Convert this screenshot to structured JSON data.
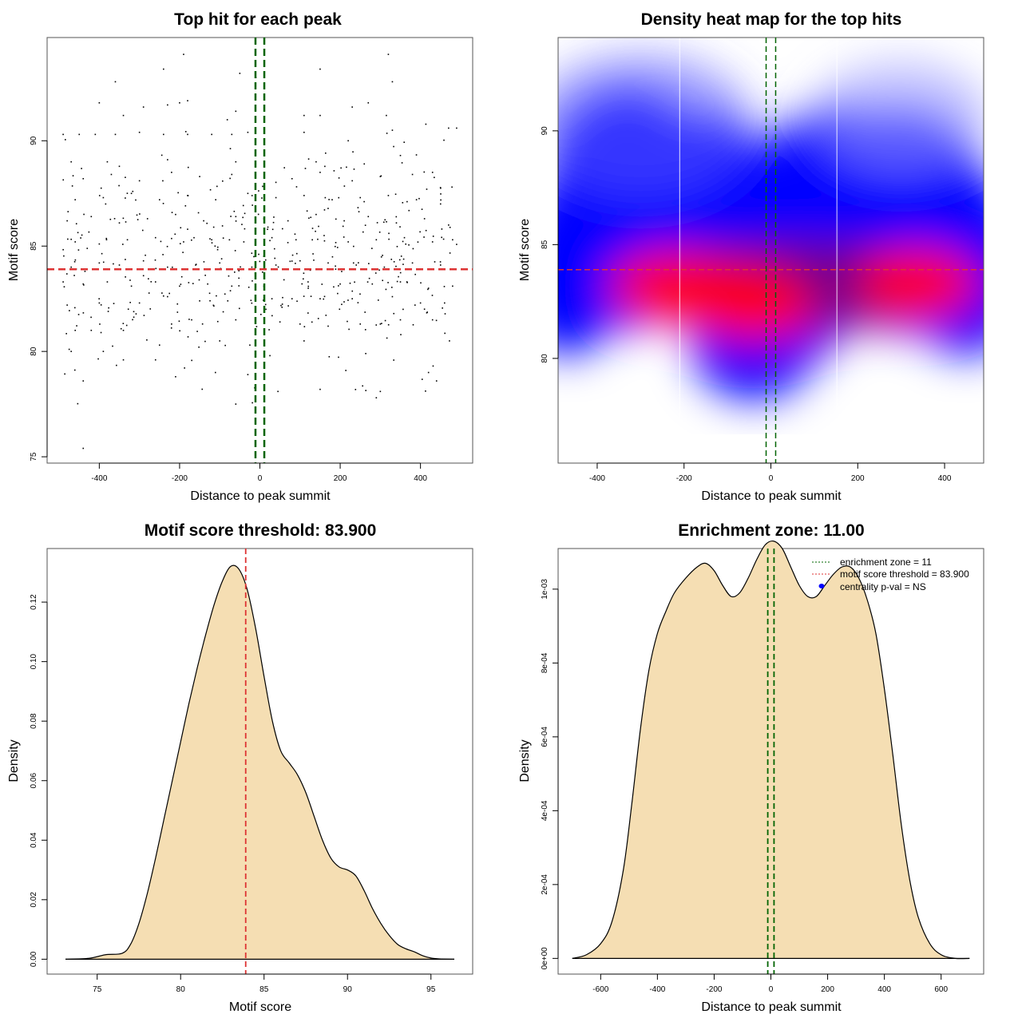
{
  "chart_data": [
    {
      "id": "scatter",
      "type": "scatter",
      "title": "Top hit for each peak",
      "xlabel": "Distance to peak summit",
      "ylabel": "Motif score",
      "xlim": [
        -530,
        530
      ],
      "ylim": [
        74.7,
        94.9
      ],
      "xticks": [
        -400,
        -200,
        0,
        200,
        400
      ],
      "xtick_labels": [
        "-400",
        "-200",
        "0",
        "200",
        "400"
      ],
      "yticks": [
        75,
        80,
        85,
        90
      ],
      "ytick_labels": [
        "75",
        "80",
        "85",
        "90"
      ],
      "grid": false,
      "hlines": [
        {
          "y": 83.9,
          "color": "#dd3333",
          "style": "dashed"
        }
      ],
      "vlines": [
        {
          "x": -11,
          "color": "#006400",
          "style": "dashed"
        },
        {
          "x": 11,
          "color": "#006400",
          "style": "dashed"
        }
      ],
      "points_summary": "~600 points spread uniformly across x in [-490, 490], y concentrated 78–92 with mean ~84",
      "points": [
        [
          -440,
          75.4
        ],
        [
          -60,
          77.5
        ],
        [
          290,
          77.8
        ],
        [
          -440,
          78.6
        ],
        [
          150,
          78.2
        ],
        [
          -340,
          79.6
        ],
        [
          -260,
          79.6
        ],
        [
          -470,
          80.0
        ],
        [
          -475,
          80.1
        ],
        [
          -210,
          78.8
        ],
        [
          -30,
          78.9
        ],
        [
          45,
          78.1
        ],
        [
          300,
          78.1
        ],
        [
          420,
          79.0
        ],
        [
          440,
          78.6
        ],
        [
          -390,
          80.0
        ],
        [
          -250,
          80.3
        ],
        [
          -100,
          80.5
        ],
        [
          110,
          80.5
        ],
        [
          -460,
          81.0
        ],
        [
          -420,
          81.0
        ],
        [
          -340,
          81.0
        ],
        [
          -220,
          81.3
        ],
        [
          -170,
          81.5
        ],
        [
          -60,
          81.5
        ],
        [
          50,
          81.4
        ],
        [
          100,
          81.3
        ],
        [
          170,
          81.2
        ],
        [
          250,
          81.3
        ],
        [
          300,
          81.3
        ],
        [
          350,
          81.5
        ],
        [
          430,
          81.5
        ],
        [
          -480,
          82.2
        ],
        [
          -400,
          82.3
        ],
        [
          -300,
          82.3
        ],
        [
          -230,
          82.6
        ],
        [
          -150,
          82.4
        ],
        [
          -80,
          82.4
        ],
        [
          30,
          82.5
        ],
        [
          80,
          82.5
        ],
        [
          150,
          82.5
        ],
        [
          230,
          82.5
        ],
        [
          330,
          82.6
        ],
        [
          400,
          82.3
        ],
        [
          460,
          82.3
        ],
        [
          -490,
          83.3
        ],
        [
          -440,
          83.2
        ],
        [
          -380,
          83.3
        ],
        [
          -320,
          83.1
        ],
        [
          -260,
          83.3
        ],
        [
          -200,
          83.1
        ],
        [
          -130,
          83.2
        ],
        [
          -70,
          83.1
        ],
        [
          10,
          83.1
        ],
        [
          60,
          83.4
        ],
        [
          120,
          83.3
        ],
        [
          200,
          83.2
        ],
        [
          280,
          83.2
        ],
        [
          350,
          83.3
        ],
        [
          420,
          83.0
        ],
        [
          480,
          83.1
        ],
        [
          -470,
          84.0
        ],
        [
          -400,
          84.2
        ],
        [
          -350,
          84.1
        ],
        [
          -290,
          84.3
        ],
        [
          -230,
          84.0
        ],
        [
          -160,
          84.1
        ],
        [
          -100,
          84.2
        ],
        [
          -20,
          84.0
        ],
        [
          40,
          84.1
        ],
        [
          100,
          84.3
        ],
        [
          170,
          84.2
        ],
        [
          240,
          84.1
        ],
        [
          310,
          84.0
        ],
        [
          380,
          84.2
        ],
        [
          450,
          84.1
        ],
        [
          -460,
          85.2
        ],
        [
          -400,
          85.1
        ],
        [
          -330,
          85.3
        ],
        [
          -260,
          85.4
        ],
        [
          -190,
          85.2
        ],
        [
          -120,
          85.3
        ],
        [
          -40,
          85.2
        ],
        [
          30,
          85.4
        ],
        [
          90,
          85.3
        ],
        [
          160,
          85.5
        ],
        [
          220,
          85.2
        ],
        [
          290,
          85.3
        ],
        [
          360,
          85.4
        ],
        [
          430,
          85.2
        ],
        [
          480,
          85.3
        ],
        [
          -480,
          86.2
        ],
        [
          -420,
          86.4
        ],
        [
          -350,
          86.1
        ],
        [
          -280,
          86.3
        ],
        [
          -210,
          86.5
        ],
        [
          -140,
          86.2
        ],
        [
          -60,
          86.4
        ],
        [
          10,
          86.3
        ],
        [
          70,
          86.2
        ],
        [
          140,
          86.5
        ],
        [
          210,
          86.2
        ],
        [
          270,
          86.4
        ],
        [
          340,
          86.1
        ],
        [
          410,
          86.3
        ],
        [
          470,
          86.0
        ],
        [
          -460,
          87.2
        ],
        [
          -390,
          87.3
        ],
        [
          -320,
          87.5
        ],
        [
          -250,
          87.2
        ],
        [
          -180,
          87.4
        ],
        [
          -110,
          87.2
        ],
        [
          -30,
          87.5
        ],
        [
          40,
          87.3
        ],
        [
          110,
          87.4
        ],
        [
          180,
          87.2
        ],
        [
          250,
          87.3
        ],
        [
          320,
          87.4
        ],
        [
          390,
          87.2
        ],
        [
          450,
          87.0
        ],
        [
          -440,
          88.2
        ],
        [
          -370,
          88.4
        ],
        [
          -300,
          88.1
        ],
        [
          -220,
          88.5
        ],
        [
          -150,
          88.3
        ],
        [
          -70,
          88.4
        ],
        [
          80,
          88.2
        ],
        [
          150,
          88.5
        ],
        [
          230,
          88.1
        ],
        [
          300,
          88.3
        ],
        [
          380,
          88.4
        ],
        [
          430,
          88.5
        ],
        [
          -470,
          89.0
        ],
        [
          -380,
          89.0
        ],
        [
          -230,
          89.1
        ],
        [
          -60,
          89.0
        ],
        [
          140,
          89.0
        ],
        [
          260,
          88.9
        ],
        [
          350,
          89.3
        ],
        [
          -490,
          90.3
        ],
        [
          -450,
          90.3
        ],
        [
          -410,
          90.3
        ],
        [
          -360,
          90.3
        ],
        [
          -300,
          90.4
        ],
        [
          -240,
          90.3
        ],
        [
          -180,
          90.3
        ],
        [
          -120,
          90.3
        ],
        [
          -70,
          90.3
        ],
        [
          -30,
          90.4
        ],
        [
          110,
          90.4
        ],
        [
          220,
          90.0
        ],
        [
          330,
          90.5
        ],
        [
          470,
          90.6
        ],
        [
          490,
          90.6
        ],
        [
          -400,
          91.8
        ],
        [
          -340,
          91.2
        ],
        [
          -290,
          91.6
        ],
        [
          -230,
          91.7
        ],
        [
          -200,
          91.8
        ],
        [
          -180,
          91.9
        ],
        [
          -60,
          91.4
        ],
        [
          110,
          91.2
        ],
        [
          150,
          91.2
        ],
        [
          230,
          91.6
        ],
        [
          270,
          91.8
        ],
        [
          315,
          91.2
        ],
        [
          -360,
          92.8
        ],
        [
          -240,
          93.4
        ],
        [
          -50,
          93.2
        ],
        [
          150,
          93.4
        ],
        [
          330,
          92.8
        ],
        [
          -190,
          94.1
        ],
        [
          320,
          94.1
        ],
        [
          -10,
          93.0
        ],
        [
          20,
          85.9
        ],
        [
          -15,
          84.5
        ],
        [
          15,
          82.0
        ],
        [
          -25,
          80.3
        ],
        [
          25,
          79.8
        ]
      ]
    },
    {
      "id": "heatmap",
      "type": "heatmap",
      "title": "Density heat map for the top hits",
      "xlabel": "Distance to peak summit",
      "ylabel": "Motif score",
      "xlim": [
        -490,
        490
      ],
      "ylim": [
        75.4,
        94.1
      ],
      "xticks": [
        -400,
        -200,
        0,
        200,
        400
      ],
      "xtick_labels": [
        "-400",
        "-200",
        "0",
        "200",
        "400"
      ],
      "yticks": [
        80,
        85,
        90
      ],
      "ytick_labels": [
        "80",
        "85",
        "90"
      ],
      "colorscale": [
        "#ffffff",
        "#0000ff",
        "#ff0000"
      ],
      "hlines": [
        {
          "y": 83.9,
          "color": "#dd3333",
          "style": "dashed"
        }
      ],
      "vlines": [
        {
          "x": -11,
          "color": "#006400",
          "style": "dashed"
        },
        {
          "x": 11,
          "color": "#006400",
          "style": "dashed"
        }
      ],
      "white_vlines": [
        -210,
        152
      ],
      "density_peaks": [
        {
          "x": -230,
          "y": 83.2,
          "intensity": 1.0
        },
        {
          "x": -40,
          "y": 82.3,
          "intensity": 1.0
        },
        {
          "x": 340,
          "y": 83.3,
          "intensity": 1.0
        }
      ]
    },
    {
      "id": "score-density",
      "type": "area",
      "title": "Motif score threshold: 83.900",
      "xlabel": "Motif score",
      "ylabel": "Density",
      "xlim": [
        72.0,
        97.5
      ],
      "ylim": [
        -0.005,
        0.138
      ],
      "xticks": [
        75,
        80,
        85,
        90,
        95
      ],
      "xtick_labels": [
        "75",
        "80",
        "85",
        "90",
        "95"
      ],
      "yticks": [
        0.0,
        0.02,
        0.04,
        0.06,
        0.08,
        0.1,
        0.12
      ],
      "ytick_labels": [
        "0.00",
        "0.02",
        "0.04",
        "0.06",
        "0.08",
        "0.10",
        "0.12"
      ],
      "fill": "#f5deb3",
      "vlines": [
        {
          "x": 83.9,
          "color": "#dd3333",
          "style": "dashed"
        }
      ],
      "x": [
        73.1,
        74.5,
        75.5,
        76.5,
        77.0,
        77.5,
        78.0,
        78.5,
        79.0,
        79.5,
        80.0,
        80.5,
        81.0,
        81.5,
        82.0,
        82.5,
        83.0,
        83.5,
        84.0,
        84.5,
        85.0,
        85.5,
        86.0,
        86.5,
        87.0,
        87.5,
        88.0,
        88.5,
        89.0,
        89.5,
        90.0,
        90.5,
        91.0,
        91.5,
        92.0,
        92.5,
        93.0,
        93.5,
        94.0,
        94.5,
        95.0,
        95.5,
        96.4
      ],
      "values": [
        0.0,
        0.0003,
        0.0015,
        0.002,
        0.005,
        0.012,
        0.022,
        0.034,
        0.047,
        0.06,
        0.073,
        0.086,
        0.098,
        0.109,
        0.119,
        0.127,
        0.132,
        0.131,
        0.124,
        0.111,
        0.095,
        0.08,
        0.07,
        0.066,
        0.062,
        0.056,
        0.048,
        0.04,
        0.034,
        0.031,
        0.03,
        0.028,
        0.023,
        0.017,
        0.012,
        0.008,
        0.005,
        0.0035,
        0.0025,
        0.0012,
        0.0004,
        0.0001,
        0.0
      ]
    },
    {
      "id": "distance-density",
      "type": "area",
      "title": "Enrichment zone: 11.00",
      "xlabel": "Distance to peak summit",
      "ylabel": "Density",
      "xlim": [
        -750,
        750
      ],
      "ylim": [
        -4.25e-05,
        0.00111
      ],
      "xticks": [
        -600,
        -400,
        -200,
        0,
        200,
        400,
        600
      ],
      "xtick_labels": [
        "-600",
        "-400",
        "-200",
        "0",
        "200",
        "400",
        "600"
      ],
      "yticks": [
        0.0,
        0.0002,
        0.0004,
        0.0006,
        0.0008,
        0.001
      ],
      "ytick_labels": [
        "0e+00",
        "2e-04",
        "4e-04",
        "6e-04",
        "8e-04",
        "1e-03"
      ],
      "fill": "#f5deb3",
      "vlines": [
        {
          "x": -11,
          "color": "#006400",
          "style": "dashed"
        },
        {
          "x": 11,
          "color": "#006400",
          "style": "dashed"
        }
      ],
      "x": [
        -700,
        -650,
        -600,
        -560,
        -520,
        -490,
        -460,
        -430,
        -400,
        -370,
        -340,
        -300,
        -260,
        -230,
        -200,
        -170,
        -140,
        -110,
        -80,
        -50,
        -20,
        10,
        40,
        70,
        100,
        130,
        160,
        190,
        220,
        250,
        280,
        310,
        340,
        370,
        400,
        430,
        460,
        490,
        520,
        560,
        600,
        650,
        700
      ],
      "values": [
        0.0,
        1e-05,
        4e-05,
        0.0001,
        0.00024,
        0.00042,
        0.00062,
        0.00078,
        0.00088,
        0.00094,
        0.00099,
        0.00103,
        0.00106,
        0.00107,
        0.00105,
        0.00101,
        0.00098,
        0.00099,
        0.00103,
        0.00108,
        0.00112,
        0.00113,
        0.00111,
        0.00106,
        0.00101,
        0.00098,
        0.00098,
        0.00101,
        0.00104,
        0.00106,
        0.00106,
        0.00103,
        0.00097,
        0.00088,
        0.00073,
        0.00055,
        0.00036,
        0.00021,
        0.00011,
        4e-05,
        1e-05,
        0.0,
        0.0
      ],
      "legend": {
        "placement": "top-right",
        "entries": [
          {
            "label": "enrichment zone = 11",
            "color": "#006400",
            "style": "dotted-line"
          },
          {
            "label": "motif score threshold = 83.900",
            "color": "#dd3333",
            "style": "dotted-line"
          },
          {
            "label": "centrality p-val = NS",
            "color": "#0000ff",
            "style": "dot"
          }
        ]
      }
    }
  ]
}
